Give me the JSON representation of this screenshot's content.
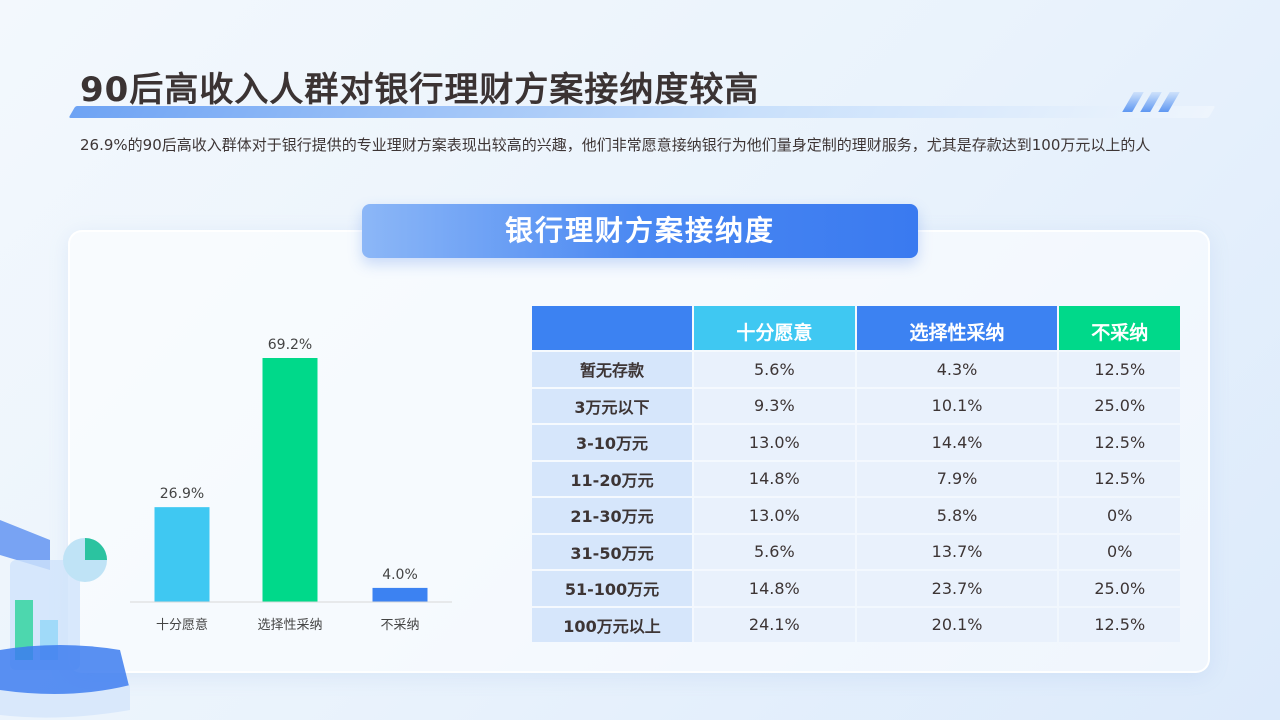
{
  "title": "90后高收入人群对银行理财方案接纳度较高",
  "description": "26.9%的90后高收入群体对于银行提供的专业理财方案表现出较高的兴趣，他们非常愿意接纳银行为他们量身定制的理财服务，尤其是存款达到100万元以上的人",
  "card_title": "银行理财方案接纳度",
  "colors": {
    "very_willing": "#3fc8f2",
    "selective": "#3c82f2",
    "not_adopt": "#00d98a",
    "header_blank": "#3c82f2"
  },
  "chart_data": {
    "type": "bar",
    "categories": [
      "十分愿意",
      "选择性采纳",
      "不采纳"
    ],
    "values": [
      26.9,
      69.2,
      4.0
    ],
    "data_labels": [
      "26.9%",
      "69.2%",
      "4.0%"
    ],
    "colors": [
      "#3fc8f2",
      "#00d98a",
      "#3c82f2"
    ],
    "ylim": [
      0,
      70
    ],
    "grid": false
  },
  "table": {
    "headers": [
      "",
      "十分愿意",
      "选择性采纳",
      "不采纳"
    ],
    "rows": [
      [
        "暂无存款",
        "5.6%",
        "4.3%",
        "12.5%"
      ],
      [
        "3万元以下",
        "9.3%",
        "10.1%",
        "25.0%"
      ],
      [
        "3-10万元",
        "13.0%",
        "14.4%",
        "12.5%"
      ],
      [
        "11-20万元",
        "14.8%",
        "7.9%",
        "12.5%"
      ],
      [
        "21-30万元",
        "13.0%",
        "5.8%",
        "0%"
      ],
      [
        "31-50万元",
        "5.6%",
        "13.7%",
        "0%"
      ],
      [
        "51-100万元",
        "14.8%",
        "23.7%",
        "25.0%"
      ],
      [
        "100万元以上",
        "24.1%",
        "20.1%",
        "12.5%"
      ]
    ]
  }
}
